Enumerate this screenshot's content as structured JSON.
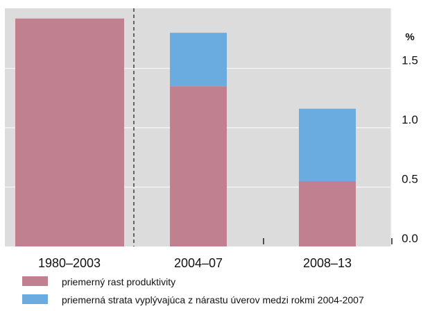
{
  "chart_data": {
    "type": "bar",
    "stacked": true,
    "categories": [
      "1980–2003",
      "2004–07",
      "2008–13"
    ],
    "series": [
      {
        "name": "priemerný rast produktivity",
        "values": [
          1.92,
          1.35,
          0.55
        ],
        "color": "#c1808f"
      },
      {
        "name": "priemerná strata vyplývajúca z nárastu úverov medzi rokmi 2004-2007",
        "values": [
          0.0,
          0.45,
          0.61
        ],
        "color": "#6aace0"
      }
    ],
    "ylabel": "%",
    "ylim": [
      0,
      2.0
    ],
    "yticks": [
      "0.0",
      "0.5",
      "1.0",
      "1.5"
    ],
    "ytick_values": [
      0,
      0.5,
      1.0,
      1.5
    ],
    "grid": true,
    "y_axis_position": "right",
    "separator_after_category": 0,
    "legend_position": "bottom-left",
    "plot_background": "#dcdcdc"
  }
}
